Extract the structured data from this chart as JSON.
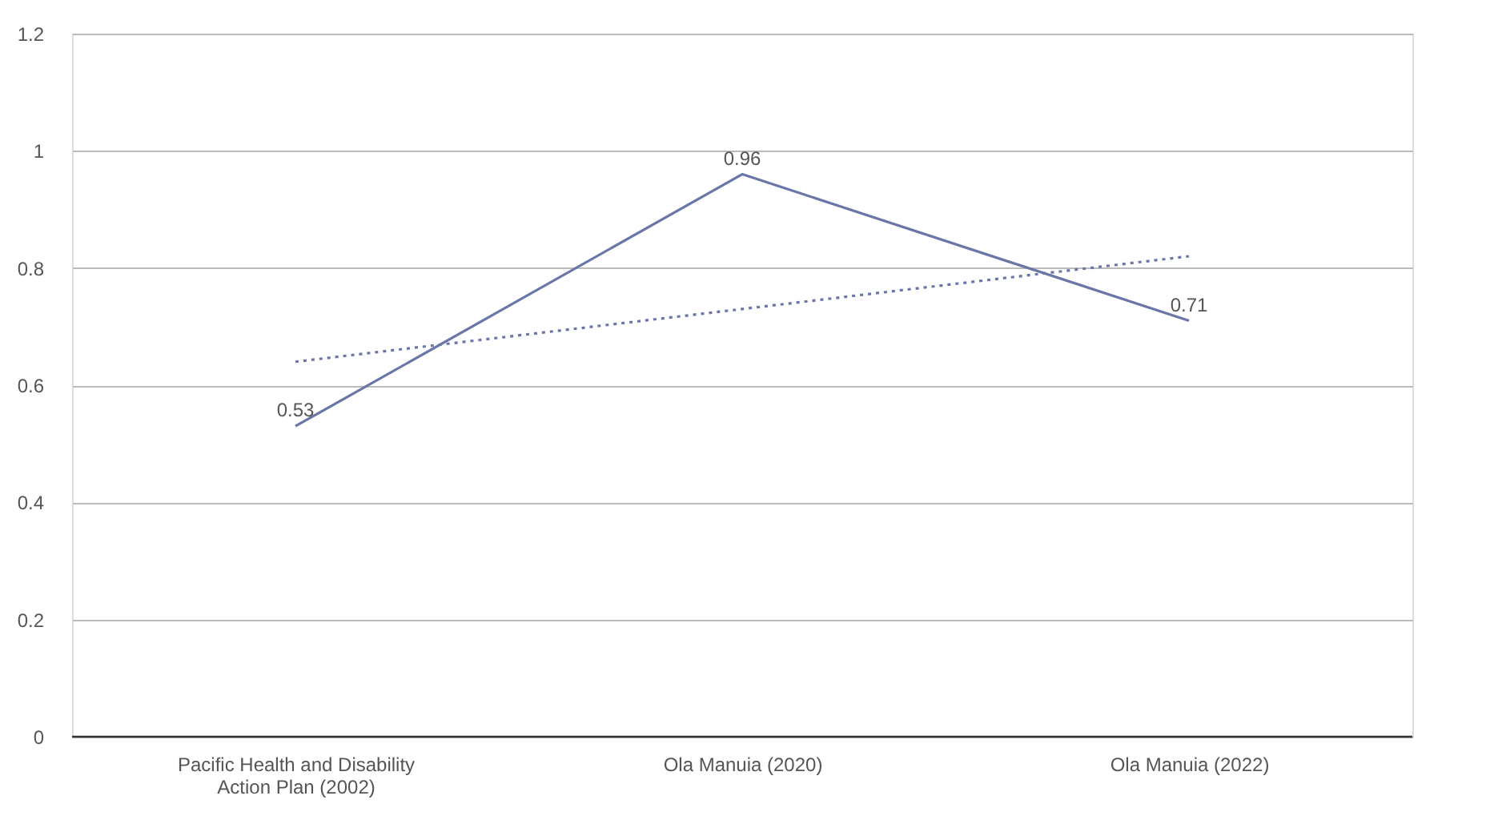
{
  "chart_data": {
    "type": "line",
    "categories": [
      "Pacific Health and Disability Action Plan (2002)",
      "Ola Manuia (2020)",
      "Ola Manuia (2022)"
    ],
    "series": [
      {
        "type": "line",
        "color": "#6b76a8",
        "values": [
          0.53,
          0.96,
          0.71
        ],
        "data_labels": true,
        "line_style": "solid"
      },
      {
        "type": "line",
        "color": "#6b76a8",
        "x": [
          "Pacific Health and Disability Action Plan (2002)",
          "Ola Manuia (2020)",
          "Ola Manuia (2022)"
        ],
        "values": [
          0.64,
          0.73,
          0.82
        ],
        "line_style": "dotted"
      }
    ],
    "ylim": [
      0,
      1.2
    ],
    "yticks": [
      0,
      0.2,
      0.4,
      0.6,
      0.8,
      1,
      1.2
    ],
    "grid": "y",
    "marker": "none"
  }
}
